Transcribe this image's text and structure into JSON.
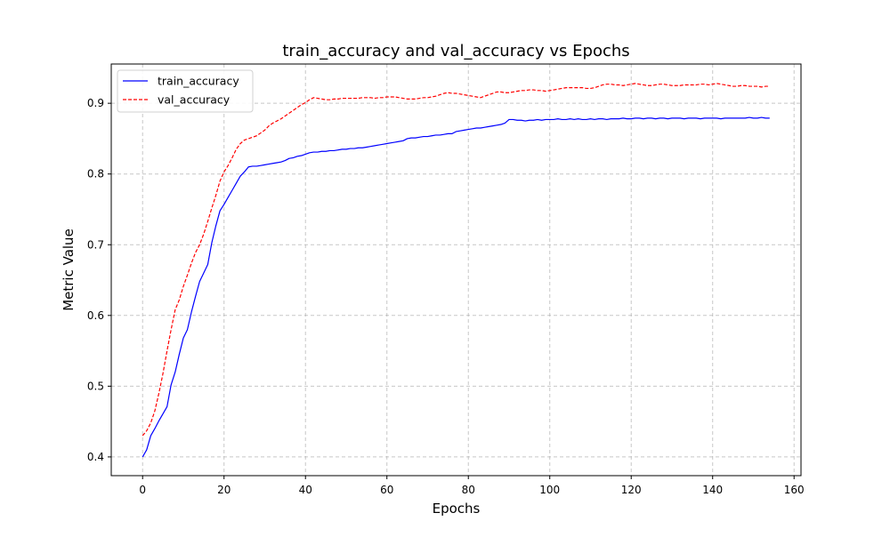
{
  "chart_data": {
    "type": "line",
    "title": "train_accuracy and val_accuracy vs Epochs",
    "xlabel": "Epochs",
    "ylabel": "Metric Value",
    "xlim": [
      -7.7,
      161.7
    ],
    "ylim": [
      0.3735,
      0.9555
    ],
    "xticks": [
      0,
      20,
      40,
      60,
      80,
      100,
      120,
      140,
      160
    ],
    "yticks": [
      0.4,
      0.5,
      0.6,
      0.7,
      0.8,
      0.9
    ],
    "grid": true,
    "legend_position": "top-left",
    "series": [
      {
        "name": "train_accuracy",
        "color": "#0000ff",
        "dash": "solid",
        "x": [
          0,
          1,
          2,
          3,
          4,
          5,
          6,
          7,
          8,
          9,
          10,
          11,
          12,
          13,
          14,
          15,
          16,
          17,
          18,
          19,
          20,
          21,
          22,
          23,
          24,
          25,
          26,
          27,
          28,
          29,
          30,
          31,
          32,
          33,
          34,
          35,
          36,
          37,
          38,
          39,
          40,
          41,
          42,
          43,
          44,
          45,
          46,
          47,
          48,
          49,
          50,
          51,
          52,
          53,
          54,
          55,
          56,
          57,
          58,
          59,
          60,
          61,
          62,
          63,
          64,
          65,
          66,
          67,
          68,
          69,
          70,
          71,
          72,
          73,
          74,
          75,
          76,
          77,
          78,
          79,
          80,
          81,
          82,
          83,
          84,
          85,
          86,
          87,
          88,
          89,
          90,
          91,
          92,
          93,
          94,
          95,
          96,
          97,
          98,
          99,
          100,
          101,
          102,
          103,
          104,
          105,
          106,
          107,
          108,
          109,
          110,
          111,
          112,
          113,
          114,
          115,
          116,
          117,
          118,
          119,
          120,
          121,
          122,
          123,
          124,
          125,
          126,
          127,
          128,
          129,
          130,
          131,
          132,
          133,
          134,
          135,
          136,
          137,
          138,
          139,
          140,
          141,
          142,
          143,
          144,
          145,
          146,
          147,
          148,
          149,
          150,
          151,
          152,
          153,
          154
        ],
        "y": [
          0.4,
          0.41,
          0.43,
          0.44,
          0.451,
          0.461,
          0.471,
          0.502,
          0.52,
          0.545,
          0.568,
          0.58,
          0.605,
          0.627,
          0.648,
          0.66,
          0.672,
          0.703,
          0.727,
          0.748,
          0.757,
          0.767,
          0.777,
          0.787,
          0.797,
          0.803,
          0.81,
          0.811,
          0.811,
          0.812,
          0.813,
          0.814,
          0.815,
          0.816,
          0.817,
          0.819,
          0.822,
          0.823,
          0.825,
          0.826,
          0.828,
          0.83,
          0.831,
          0.831,
          0.832,
          0.832,
          0.833,
          0.833,
          0.834,
          0.835,
          0.835,
          0.836,
          0.836,
          0.837,
          0.837,
          0.838,
          0.839,
          0.84,
          0.841,
          0.842,
          0.843,
          0.844,
          0.845,
          0.846,
          0.847,
          0.85,
          0.851,
          0.851,
          0.852,
          0.853,
          0.853,
          0.854,
          0.855,
          0.855,
          0.856,
          0.857,
          0.857,
          0.86,
          0.861,
          0.862,
          0.863,
          0.864,
          0.865,
          0.865,
          0.866,
          0.867,
          0.868,
          0.869,
          0.87,
          0.872,
          0.877,
          0.877,
          0.876,
          0.876,
          0.875,
          0.876,
          0.876,
          0.877,
          0.876,
          0.877,
          0.877,
          0.877,
          0.878,
          0.877,
          0.877,
          0.878,
          0.877,
          0.878,
          0.877,
          0.877,
          0.878,
          0.877,
          0.878,
          0.878,
          0.877,
          0.878,
          0.878,
          0.878,
          0.879,
          0.878,
          0.878,
          0.879,
          0.879,
          0.878,
          0.879,
          0.879,
          0.878,
          0.879,
          0.879,
          0.878,
          0.879,
          0.879,
          0.879,
          0.878,
          0.879,
          0.879,
          0.879,
          0.878,
          0.879,
          0.879,
          0.879,
          0.879,
          0.878,
          0.879,
          0.879,
          0.879,
          0.879,
          0.879,
          0.879,
          0.88,
          0.879,
          0.879,
          0.88,
          0.879,
          0.879
        ]
      },
      {
        "name": "val_accuracy",
        "color": "#ff0000",
        "dash": "dashed",
        "x": [
          0,
          1,
          2,
          3,
          4,
          5,
          6,
          7,
          8,
          9,
          10,
          11,
          12,
          13,
          14,
          15,
          16,
          17,
          18,
          19,
          20,
          21,
          22,
          23,
          24,
          25,
          26,
          27,
          28,
          29,
          30,
          31,
          32,
          33,
          34,
          35,
          36,
          37,
          38,
          39,
          40,
          41,
          42,
          43,
          44,
          45,
          46,
          47,
          48,
          49,
          50,
          51,
          52,
          53,
          54,
          55,
          56,
          57,
          58,
          59,
          60,
          61,
          62,
          63,
          64,
          65,
          66,
          67,
          68,
          69,
          70,
          71,
          72,
          73,
          74,
          75,
          76,
          77,
          78,
          79,
          80,
          81,
          82,
          83,
          84,
          85,
          86,
          87,
          88,
          89,
          90,
          91,
          92,
          93,
          94,
          95,
          96,
          97,
          98,
          99,
          100,
          101,
          102,
          103,
          104,
          105,
          106,
          107,
          108,
          109,
          110,
          111,
          112,
          113,
          114,
          115,
          116,
          117,
          118,
          119,
          120,
          121,
          122,
          123,
          124,
          125,
          126,
          127,
          128,
          129,
          130,
          131,
          132,
          133,
          134,
          135,
          136,
          137,
          138,
          139,
          140,
          141,
          142,
          143,
          144,
          145,
          146,
          147,
          148,
          149,
          150,
          151,
          152,
          153,
          154
        ],
        "y": [
          0.43,
          0.437,
          0.448,
          0.465,
          0.49,
          0.518,
          0.55,
          0.58,
          0.608,
          0.622,
          0.641,
          0.657,
          0.674,
          0.689,
          0.7,
          0.715,
          0.733,
          0.752,
          0.77,
          0.79,
          0.803,
          0.812,
          0.823,
          0.835,
          0.843,
          0.848,
          0.85,
          0.852,
          0.854,
          0.858,
          0.862,
          0.868,
          0.872,
          0.875,
          0.878,
          0.882,
          0.886,
          0.89,
          0.894,
          0.898,
          0.901,
          0.905,
          0.908,
          0.907,
          0.906,
          0.905,
          0.905,
          0.906,
          0.906,
          0.907,
          0.907,
          0.907,
          0.907,
          0.907,
          0.908,
          0.908,
          0.908,
          0.907,
          0.908,
          0.908,
          0.909,
          0.909,
          0.909,
          0.908,
          0.907,
          0.906,
          0.906,
          0.906,
          0.907,
          0.908,
          0.908,
          0.909,
          0.91,
          0.912,
          0.914,
          0.915,
          0.914,
          0.914,
          0.913,
          0.912,
          0.911,
          0.91,
          0.909,
          0.908,
          0.91,
          0.912,
          0.914,
          0.916,
          0.916,
          0.915,
          0.915,
          0.916,
          0.917,
          0.918,
          0.918,
          0.919,
          0.919,
          0.918,
          0.918,
          0.917,
          0.918,
          0.919,
          0.92,
          0.921,
          0.922,
          0.922,
          0.922,
          0.922,
          0.922,
          0.921,
          0.921,
          0.922,
          0.924,
          0.926,
          0.927,
          0.927,
          0.926,
          0.926,
          0.925,
          0.926,
          0.927,
          0.928,
          0.927,
          0.926,
          0.925,
          0.925,
          0.926,
          0.927,
          0.927,
          0.926,
          0.925,
          0.925,
          0.925,
          0.926,
          0.926,
          0.926,
          0.926,
          0.927,
          0.927,
          0.926,
          0.927,
          0.928,
          0.927,
          0.926,
          0.925,
          0.924,
          0.924,
          0.925,
          0.925,
          0.924,
          0.924,
          0.924,
          0.923,
          0.924,
          0.924
        ]
      }
    ]
  }
}
